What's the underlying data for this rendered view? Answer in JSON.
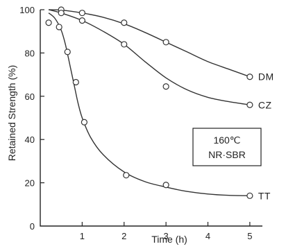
{
  "chart_data": {
    "type": "line",
    "xlabel": "Time (h)",
    "ylabel": "Retained Strength (%)",
    "xlim": [
      0,
      5.3
    ],
    "ylim": [
      0,
      100
    ],
    "x_ticks": [
      "0",
      "1",
      "2",
      "3",
      "4",
      "5"
    ],
    "y_ticks": [
      "0",
      "20",
      "40",
      "60",
      "80",
      "100"
    ],
    "grid": false,
    "legend": "series labels at right end of each curve",
    "annotation": {
      "line1": "160℃",
      "line2": "NR·SBR"
    },
    "series": [
      {
        "name": "DM",
        "points": [
          [
            0.5,
            100
          ],
          [
            1,
            98.5
          ],
          [
            2,
            94
          ],
          [
            3,
            85
          ],
          [
            5,
            69
          ]
        ],
        "curve": [
          [
            0.2,
            100
          ],
          [
            0.5,
            99.8
          ],
          [
            1,
            98.5
          ],
          [
            1.5,
            96.5
          ],
          [
            2,
            93.5
          ],
          [
            2.5,
            89.5
          ],
          [
            3,
            85
          ],
          [
            3.5,
            80.5
          ],
          [
            4,
            76
          ],
          [
            4.5,
            72.5
          ],
          [
            5,
            69
          ]
        ]
      },
      {
        "name": "CZ",
        "points": [
          [
            0.5,
            98.5
          ],
          [
            1,
            95
          ],
          [
            2,
            84
          ],
          [
            3,
            64.5
          ],
          [
            5,
            56
          ]
        ],
        "curve": [
          [
            0.2,
            100
          ],
          [
            0.5,
            98.5
          ],
          [
            1,
            95
          ],
          [
            1.5,
            90
          ],
          [
            2,
            84
          ],
          [
            2.5,
            76
          ],
          [
            3,
            68.5
          ],
          [
            3.5,
            63
          ],
          [
            4,
            59.5
          ],
          [
            4.5,
            57.5
          ],
          [
            5,
            56
          ]
        ]
      },
      {
        "name": "TT",
        "points": [
          [
            0.2,
            94
          ],
          [
            0.45,
            92
          ],
          [
            0.65,
            80.5
          ],
          [
            0.85,
            66.5
          ],
          [
            1.05,
            48
          ],
          [
            2.05,
            23.5
          ],
          [
            3,
            19
          ],
          [
            5,
            14
          ]
        ],
        "curve": [
          [
            0.2,
            98.5
          ],
          [
            0.35,
            96
          ],
          [
            0.5,
            90.5
          ],
          [
            0.6,
            84
          ],
          [
            0.7,
            75
          ],
          [
            0.8,
            66
          ],
          [
            0.9,
            57
          ],
          [
            1,
            50
          ],
          [
            1.2,
            41
          ],
          [
            1.5,
            33
          ],
          [
            2,
            25
          ],
          [
            2.5,
            20.5
          ],
          [
            3,
            18
          ],
          [
            3.5,
            16
          ],
          [
            4,
            14.8
          ],
          [
            4.5,
            14.2
          ],
          [
            5,
            14
          ]
        ]
      }
    ]
  }
}
